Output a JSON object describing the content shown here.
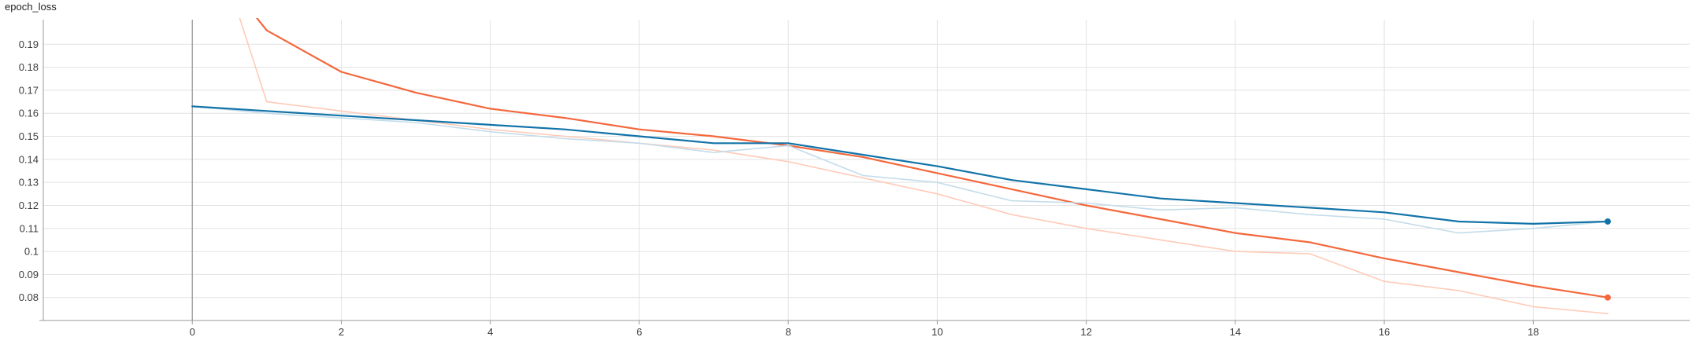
{
  "chart_data": {
    "type": "line",
    "title": "epoch_loss",
    "xlabel": "",
    "ylabel": "",
    "xlim": [
      -2,
      20.1
    ],
    "ylim": [
      0.07,
      0.2
    ],
    "xticks": [
      0,
      2,
      4,
      6,
      8,
      10,
      12,
      14,
      16,
      18
    ],
    "yticks": [
      0.08,
      0.09,
      0.1,
      0.11,
      0.12,
      0.13,
      0.14,
      0.15,
      0.16,
      0.17,
      0.18,
      0.19
    ],
    "ytick_labels": [
      "0.08",
      "0.09",
      "0.1",
      "0.11",
      "0.12",
      "0.13",
      "0.14",
      "0.15",
      "0.16",
      "0.17",
      "0.18",
      "0.19"
    ],
    "grid": true,
    "series": [
      {
        "role": "raw",
        "color": "#ffcbb8",
        "x": [
          0.35,
          1,
          2,
          3,
          4,
          5,
          6,
          7,
          8,
          9,
          10,
          11,
          12,
          13,
          14,
          15,
          16,
          17,
          18,
          19
        ],
        "y": [
          0.23,
          0.165,
          0.161,
          0.157,
          0.153,
          0.15,
          0.147,
          0.144,
          0.139,
          0.132,
          0.125,
          0.116,
          0.11,
          0.105,
          0.1,
          0.099,
          0.087,
          0.083,
          0.076,
          0.073
        ]
      },
      {
        "role": "smoothed",
        "color": "#f4683c",
        "x": [
          0.85,
          1,
          2,
          3,
          4,
          5,
          6,
          7,
          8,
          9,
          10,
          11,
          12,
          13,
          14,
          15,
          16,
          17,
          18,
          19
        ],
        "y": [
          0.202,
          0.196,
          0.178,
          0.169,
          0.162,
          0.158,
          0.153,
          0.15,
          0.146,
          0.141,
          0.134,
          0.127,
          0.12,
          0.114,
          0.108,
          0.104,
          0.097,
          0.091,
          0.085,
          0.08
        ]
      },
      {
        "role": "raw",
        "color": "#c3dcea",
        "x": [
          0,
          1,
          2,
          3,
          4,
          5,
          6,
          7,
          8,
          9,
          10,
          11,
          12,
          13,
          14,
          15,
          16,
          17,
          18,
          19
        ],
        "y": [
          0.163,
          0.16,
          0.158,
          0.156,
          0.152,
          0.149,
          0.147,
          0.143,
          0.146,
          0.133,
          0.13,
          0.122,
          0.121,
          0.118,
          0.119,
          0.116,
          0.114,
          0.108,
          0.11,
          0.113
        ]
      },
      {
        "role": "smoothed",
        "color": "#1273a8",
        "x": [
          0,
          1,
          2,
          3,
          4,
          5,
          6,
          7,
          8,
          9,
          10,
          11,
          12,
          13,
          14,
          15,
          16,
          17,
          18,
          19
        ],
        "y": [
          0.163,
          0.161,
          0.159,
          0.157,
          0.155,
          0.153,
          0.15,
          0.147,
          0.147,
          0.142,
          0.137,
          0.131,
          0.127,
          0.123,
          0.121,
          0.119,
          0.117,
          0.113,
          0.112,
          0.113
        ]
      }
    ]
  }
}
